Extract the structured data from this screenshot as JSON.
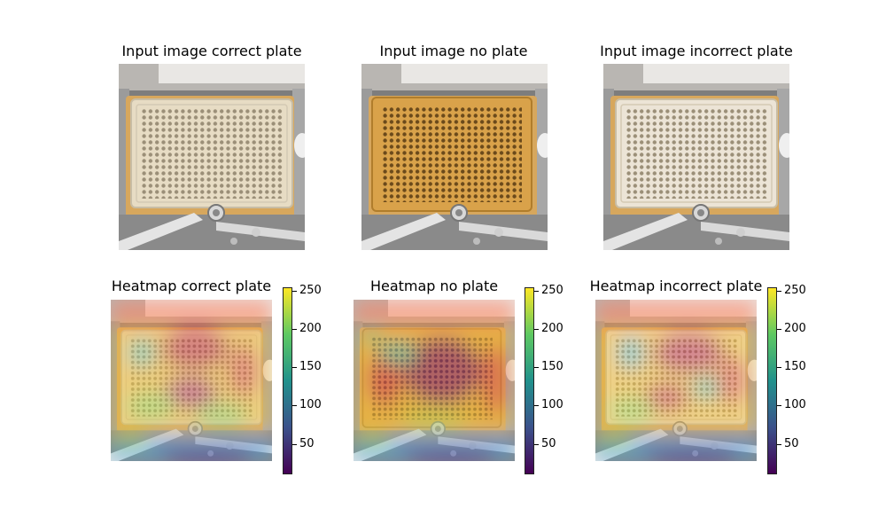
{
  "figure": {
    "input_titles": [
      "Input image correct plate",
      "Input image no plate",
      "Input image incorrect plate"
    ],
    "heatmap_titles": [
      "Heatmap correct plate",
      "Heatmap no plate",
      "Heatmap incorrect plate"
    ],
    "colorbar": {
      "colormap": "viridis",
      "range": [
        10,
        255
      ],
      "ticks": [
        50,
        100,
        150,
        200,
        250
      ],
      "colors": [
        "#440154",
        "#3b528b",
        "#21918c",
        "#5ec962",
        "#fde725"
      ]
    },
    "plate_colors": {
      "correct": "#e7dcc4",
      "none": "#d9a24a",
      "incorrect": "#ece4d6",
      "holder": "#d7a75d",
      "machine": "#7d7d7d"
    }
  }
}
